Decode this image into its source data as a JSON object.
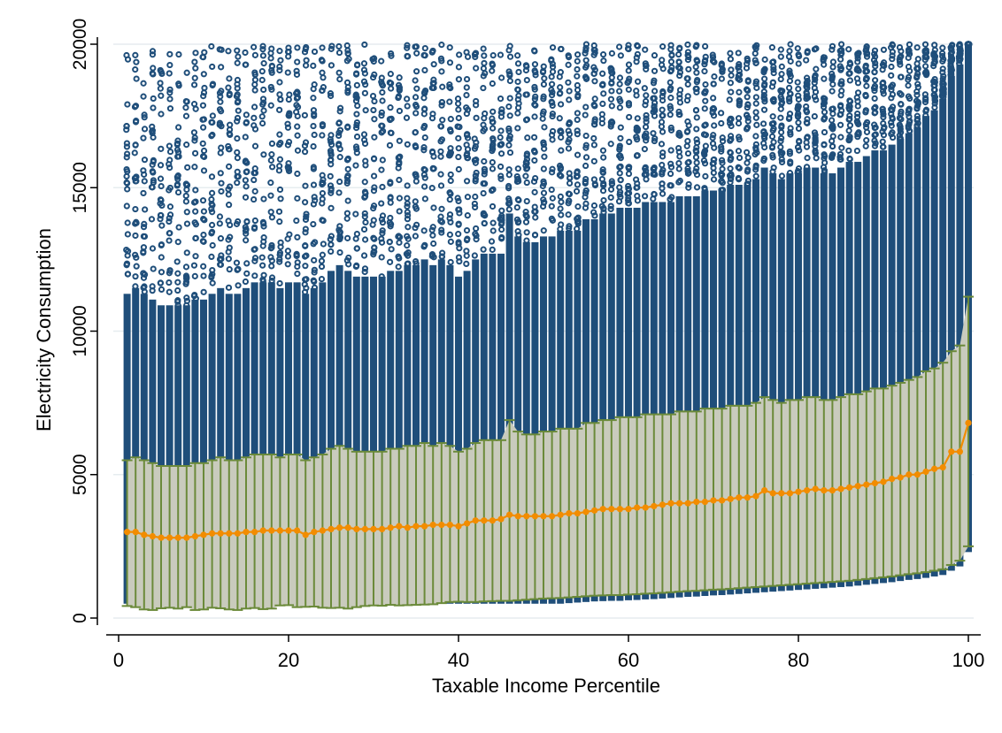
{
  "chart_data": {
    "type": "scatter",
    "title": "",
    "xlabel": "Taxable Income Percentile",
    "ylabel": "Electricity Consumption",
    "xlim": [
      0,
      100
    ],
    "ylim": [
      0,
      20000
    ],
    "x_ticks": [
      "0",
      "20",
      "40",
      "60",
      "80",
      "100"
    ],
    "y_ticks": [
      "0",
      "5000",
      "10000",
      "15000",
      "20000"
    ],
    "grid": true,
    "legend": "none",
    "series": [
      {
        "kind": "band",
        "percentile": [
          1,
          2,
          3,
          4,
          5,
          6,
          7,
          8,
          9,
          10,
          11,
          12,
          13,
          14,
          15,
          16,
          17,
          18,
          19,
          20,
          21,
          22,
          23,
          24,
          25,
          26,
          27,
          28,
          29,
          30,
          31,
          32,
          33,
          34,
          35,
          36,
          37,
          38,
          39,
          40,
          41,
          42,
          43,
          44,
          45,
          46,
          47,
          48,
          49,
          50,
          51,
          52,
          53,
          54,
          55,
          56,
          57,
          58,
          59,
          60,
          61,
          62,
          63,
          64,
          65,
          66,
          67,
          68,
          69,
          70,
          71,
          72,
          73,
          74,
          75,
          76,
          77,
          78,
          79,
          80,
          81,
          82,
          83,
          84,
          85,
          86,
          87,
          88,
          89,
          90,
          91,
          92,
          93,
          94,
          95,
          96,
          97,
          98,
          99,
          100
        ],
        "lower": [
          420,
          380,
          300,
          280,
          340,
          360,
          330,
          380,
          280,
          300,
          360,
          340,
          300,
          280,
          330,
          350,
          310,
          330,
          440,
          450,
          380,
          390,
          400,
          360,
          350,
          360,
          330,
          380,
          420,
          440,
          430,
          460,
          440,
          450,
          460,
          470,
          480,
          520,
          560,
          570,
          560,
          560,
          580,
          590,
          600,
          600,
          620,
          640,
          660,
          680,
          690,
          700,
          720,
          740,
          760,
          780,
          790,
          800,
          800,
          820,
          830,
          850,
          860,
          880,
          900,
          920,
          940,
          950,
          970,
          990,
          1000,
          1020,
          1040,
          1060,
          1080,
          1100,
          1120,
          1140,
          1160,
          1180,
          1200,
          1220,
          1240,
          1260,
          1280,
          1300,
          1330,
          1360,
          1390,
          1420,
          1450,
          1490,
          1530,
          1560,
          1600,
          1650,
          1700,
          1850,
          2000,
          2500
        ],
        "upper": [
          5500,
          5600,
          5500,
          5400,
          5300,
          5300,
          5300,
          5300,
          5400,
          5400,
          5500,
          5600,
          5500,
          5500,
          5600,
          5700,
          5700,
          5700,
          5600,
          5700,
          5700,
          5500,
          5600,
          5700,
          5900,
          6000,
          5900,
          5800,
          5800,
          5800,
          5800,
          5900,
          5900,
          6000,
          6000,
          6100,
          6000,
          6100,
          6000,
          5800,
          5900,
          6100,
          6200,
          6200,
          6200,
          6900,
          6500,
          6400,
          6400,
          6500,
          6500,
          6600,
          6600,
          6600,
          6800,
          6800,
          6900,
          6900,
          7000,
          7000,
          7000,
          7100,
          7100,
          7100,
          7100,
          7200,
          7200,
          7200,
          7300,
          7300,
          7300,
          7400,
          7400,
          7400,
          7500,
          7700,
          7600,
          7500,
          7600,
          7600,
          7700,
          7700,
          7600,
          7600,
          7700,
          7800,
          7800,
          7900,
          8000,
          8000,
          8100,
          8200,
          8300,
          8400,
          8600,
          8700,
          8900,
          9300,
          9500,
          11200
        ],
        "median": [
          3000,
          3000,
          2900,
          2850,
          2800,
          2800,
          2800,
          2800,
          2850,
          2900,
          2950,
          2950,
          2950,
          2950,
          3000,
          3000,
          3050,
          3050,
          3050,
          3050,
          3050,
          2900,
          3000,
          3050,
          3100,
          3150,
          3150,
          3100,
          3100,
          3100,
          3100,
          3150,
          3200,
          3150,
          3200,
          3200,
          3250,
          3250,
          3250,
          3200,
          3300,
          3400,
          3400,
          3400,
          3450,
          3600,
          3550,
          3550,
          3550,
          3550,
          3550,
          3600,
          3650,
          3650,
          3700,
          3750,
          3800,
          3800,
          3800,
          3800,
          3850,
          3850,
          3900,
          3950,
          4000,
          4000,
          4000,
          4050,
          4050,
          4100,
          4100,
          4150,
          4200,
          4200,
          4250,
          4450,
          4350,
          4350,
          4350,
          4400,
          4450,
          4500,
          4450,
          4450,
          4500,
          4550,
          4600,
          4650,
          4700,
          4750,
          4850,
          4900,
          5000,
          5000,
          5100,
          5200,
          5250,
          5800,
          5800,
          6800
        ]
      }
    ],
    "colors": {
      "scatter": "#1f4e7a",
      "band_fill": "#c9cbbd",
      "band_edge": "#6b8a3a",
      "median": "#f28c00",
      "grid": "#e6ecef"
    }
  }
}
